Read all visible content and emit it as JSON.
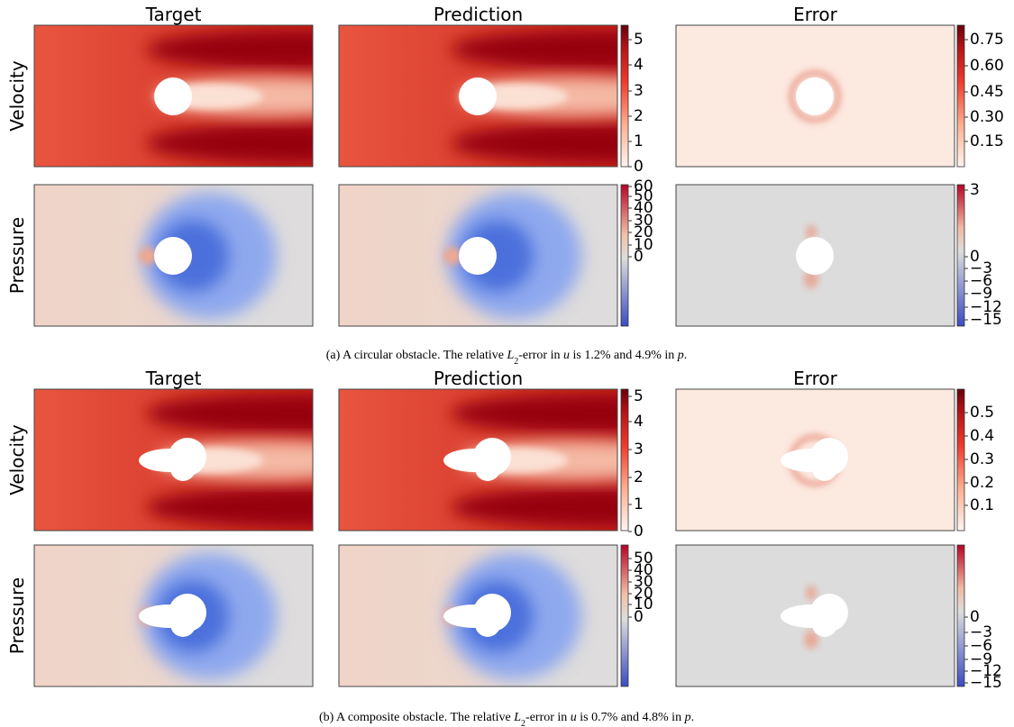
{
  "panels": [
    {
      "column_titles": [
        "Target",
        "Prediction",
        "Error"
      ],
      "row_labels": [
        "Velocity",
        "Pressure"
      ],
      "colorbars": {
        "velocity": [
          "5",
          "4",
          "3",
          "2",
          "1",
          "0"
        ],
        "velocity_error": [
          "0.75",
          "0.60",
          "0.45",
          "0.30",
          "0.15"
        ],
        "pressure": [
          "60",
          "50",
          "40",
          "30",
          "20",
          "10",
          "0"
        ],
        "pressure_error": [
          "3",
          "0",
          "−3",
          "−6",
          "−9",
          "−12",
          "−15"
        ]
      },
      "caption": [
        "(a)  A circular obstacle. The relative ",
        "L",
        "2",
        "-error in ",
        "u",
        " is 1.2% and 4.9% in ",
        "p",
        "."
      ]
    },
    {
      "column_titles": [
        "Target",
        "Prediction",
        "Error"
      ],
      "row_labels": [
        "Velocity",
        "Pressure"
      ],
      "colorbars": {
        "velocity": [
          "5",
          "4",
          "3",
          "2",
          "1",
          "0"
        ],
        "velocity_error": [
          "0.5",
          "0.4",
          "0.3",
          "0.2",
          "0.1"
        ],
        "pressure": [
          "50",
          "40",
          "30",
          "20",
          "10",
          "0"
        ],
        "pressure_error": [
          "0",
          "−3",
          "−6",
          "−9",
          "−12",
          "−15"
        ]
      },
      "caption": [
        "(b)  A composite obstacle. The relative ",
        "L",
        "2",
        "-error in ",
        "u",
        " is 0.7% and 4.8% in ",
        "p",
        "."
      ]
    }
  ]
}
